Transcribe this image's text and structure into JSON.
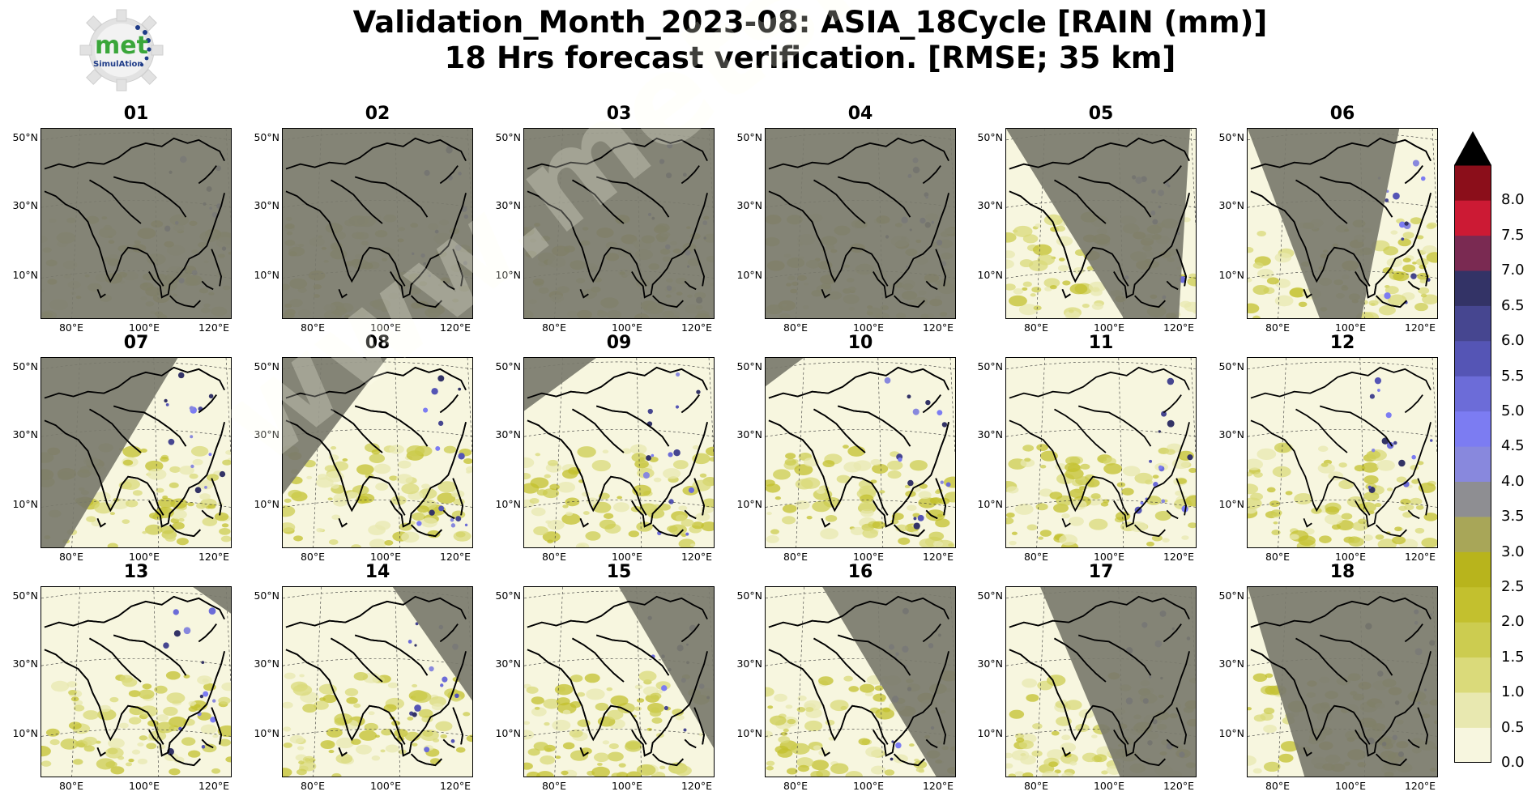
{
  "title": {
    "line1": "Validation_Month_2023-08: ASIA_18Cycle [RAIN (mm)]",
    "line2": "18 Hrs forecast verification.  [RMSE; 35 km]"
  },
  "logo": {
    "text": "met",
    "subtext": "SimulAtion",
    "icon": "gear-logo-icon"
  },
  "watermark": "www.metsimulation.com",
  "panels": [
    {
      "label": "01",
      "night": [
        0,
        0,
        1,
        0,
        1,
        1,
        0,
        1
      ]
    },
    {
      "label": "02",
      "night": [
        0,
        0,
        1,
        0,
        1,
        1,
        0,
        1
      ]
    },
    {
      "label": "03",
      "night": [
        0,
        0,
        1,
        0,
        1,
        1,
        0,
        1
      ]
    },
    {
      "label": "04",
      "night": [
        0,
        0,
        1,
        0,
        1,
        1,
        0,
        1
      ]
    },
    {
      "label": "05",
      "night": [
        0,
        0,
        0.97,
        0,
        0.91,
        1,
        0.62,
        1
      ]
    },
    {
      "label": "06",
      "night": [
        0,
        0,
        0.8,
        0,
        0.6,
        1,
        0.38,
        1
      ]
    },
    {
      "label": "07",
      "night": [
        0,
        0,
        0.72,
        0,
        0.12,
        1,
        0,
        1
      ]
    },
    {
      "label": "08",
      "night": [
        0,
        0,
        0.55,
        0,
        0,
        0.72,
        0,
        0.72
      ]
    },
    {
      "label": "09",
      "night": [
        0,
        0,
        0.38,
        0,
        0,
        0.28,
        0,
        0.28
      ]
    },
    {
      "label": "10",
      "night": [
        0,
        0,
        0.2,
        0,
        0,
        0.15,
        0,
        0.15
      ]
    },
    {
      "label": "11",
      "night": [
        0,
        0,
        0,
        0,
        0,
        0,
        0,
        0
      ]
    },
    {
      "label": "12",
      "night": [
        0,
        0,
        0,
        0,
        0,
        0,
        0,
        0
      ]
    },
    {
      "label": "13",
      "night": [
        0.8,
        0,
        1,
        0,
        1,
        0.14,
        1,
        0.14
      ]
    },
    {
      "label": "14",
      "night": [
        0.58,
        0,
        1,
        0,
        1,
        0.6,
        1,
        0.6
      ]
    },
    {
      "label": "15",
      "night": [
        0.5,
        0,
        1,
        0,
        1,
        0.85,
        1,
        0.85
      ]
    },
    {
      "label": "16",
      "night": [
        0.3,
        0,
        1,
        0,
        1,
        1,
        0.9,
        1
      ]
    },
    {
      "label": "17",
      "night": [
        0.18,
        0,
        1,
        0,
        1,
        1,
        0.6,
        1
      ]
    },
    {
      "label": "18",
      "night": [
        0,
        0,
        1,
        0,
        1,
        1,
        0.3,
        1
      ]
    }
  ],
  "map_axes": {
    "y_ticks": [
      "50°N",
      "30°N",
      "10°N"
    ],
    "x_ticks": [
      "80°E",
      "100°E",
      "120°E"
    ]
  },
  "colorbar": {
    "levels": [
      "0.0",
      "0.5",
      "1.0",
      "1.5",
      "2.0",
      "2.5",
      "3.0",
      "3.5",
      "4.0",
      "4.5",
      "5.0",
      "5.5",
      "6.0",
      "6.5",
      "7.0",
      "7.5",
      "8.0"
    ],
    "colors": [
      "#f7f6df",
      "#e8e8b0",
      "#dada7a",
      "#cccc50",
      "#c3c02e",
      "#b8b41c",
      "#a8a658",
      "#8e8e92",
      "#8888dd",
      "#7c7cf2",
      "#6c6cd8",
      "#5555b5",
      "#464690",
      "#333366",
      "#7a2a52",
      "#cc1a34",
      "#8b0e1a"
    ],
    "extend_color": "#000000"
  },
  "night_color": "#7a7a6c"
}
